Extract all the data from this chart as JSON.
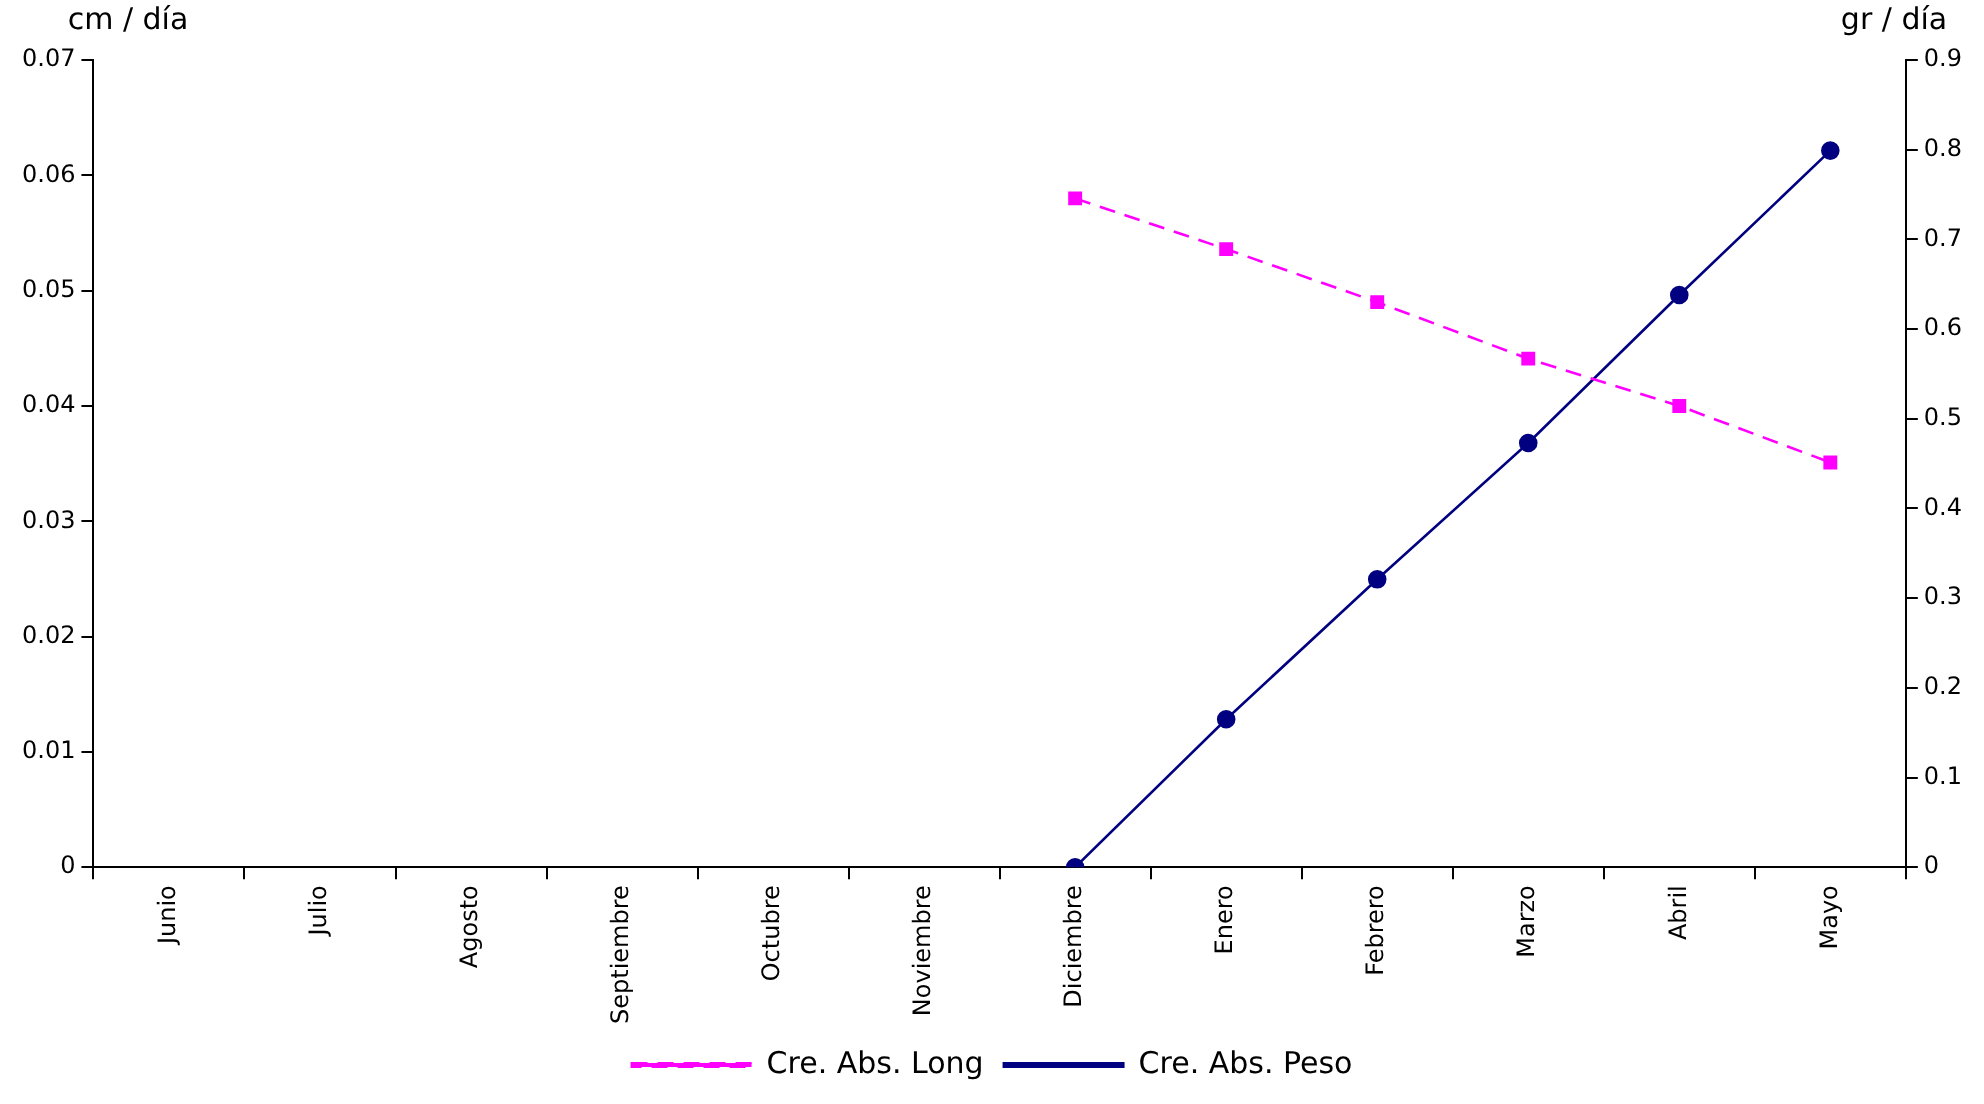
{
  "chart_data": {
    "type": "line",
    "ylabel": "cm / día",
    "y2label": "gr / día",
    "categories": [
      "Junio",
      "Julio",
      "Agosto",
      "Septiembre",
      "Octubre",
      "Noviembre",
      "Diciembre",
      "Enero",
      "Febrero",
      "Marzo",
      "Abril",
      "Mayo"
    ],
    "series": [
      {
        "name": "Cre. Abs. Long",
        "color": "#ff00ff",
        "marker": "square",
        "line_style": "dashed",
        "axis": "y",
        "values": [
          null,
          null,
          null,
          null,
          null,
          null,
          0.058,
          0.0536,
          0.049,
          0.0441,
          0.04,
          0.0351
        ]
      },
      {
        "name": "Cre. Abs. Peso",
        "color": "#000080",
        "marker": "circle",
        "line_style": "solid",
        "axis": "y2",
        "values": [
          null,
          null,
          null,
          null,
          null,
          null,
          0,
          0.165,
          0.321,
          0.473,
          0.638,
          0.799
        ]
      }
    ],
    "ylim": [
      0,
      0.07
    ],
    "yticks": [
      0,
      0.01,
      0.02,
      0.03,
      0.04,
      0.05,
      0.06,
      0.07
    ],
    "y2lim": [
      0,
      0.9
    ],
    "y2ticks": [
      0,
      0.1,
      0.2,
      0.3,
      0.4,
      0.5,
      0.6,
      0.7,
      0.8,
      0.9
    ],
    "grid": false,
    "legend": "bottom"
  }
}
